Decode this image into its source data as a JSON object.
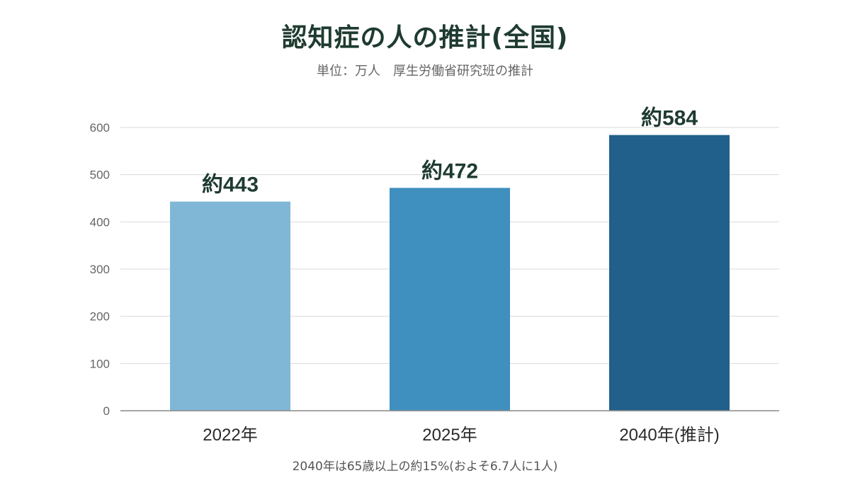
{
  "header": {
    "title": "認知症の人の推計(全国)",
    "subtitle": "単位：万人　厚生労働省研究班の推計"
  },
  "footer": {
    "note": "2040年は65歳以上の約15%(およそ6.7人に1人)"
  },
  "chart_data": {
    "type": "bar",
    "title": "認知症の人の推計(全国)",
    "categories": [
      "2022年",
      "2025年",
      "2040年(推計)"
    ],
    "values": [
      443,
      472,
      584
    ],
    "data_labels": [
      "約443",
      "約472",
      "約584"
    ],
    "colors": [
      "#80b7d6",
      "#3f8fbf",
      "#20608a"
    ],
    "ylim": [
      0,
      600
    ],
    "yticks": [
      0,
      100,
      200,
      300,
      400,
      500,
      600
    ],
    "xlabel": "",
    "ylabel": "",
    "grid": true,
    "legend": "none"
  }
}
